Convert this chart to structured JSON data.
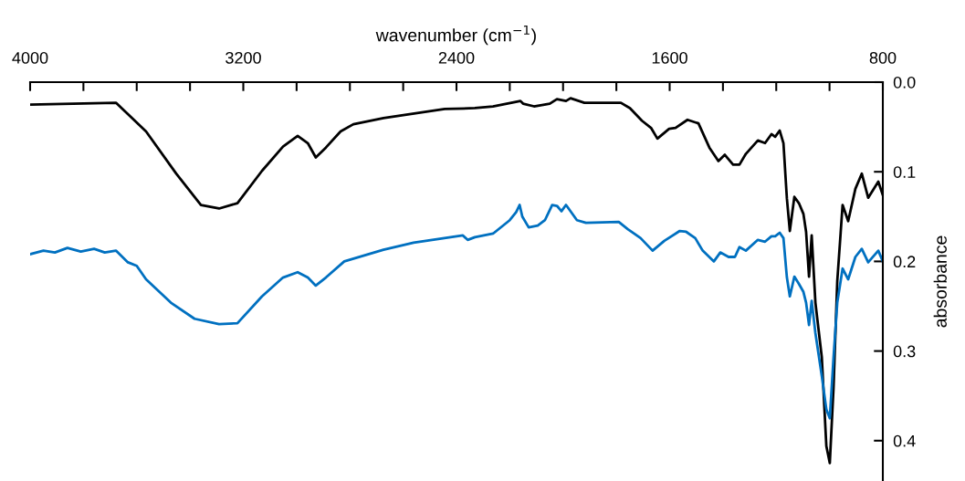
{
  "chart_data": {
    "type": "line",
    "xlabel": "wavenumber (cm$^{−1}$)",
    "ylabel": "absorbance",
    "xlim": [
      4000,
      800
    ],
    "ylim": [
      0.445,
      0
    ],
    "xticks": [
      4000,
      {
        "value": 3800,
        "label": null
      },
      {
        "value": 3600,
        "label": null
      },
      {
        "value": 3400,
        "label": null
      },
      3200,
      {
        "value": 3000,
        "label": null
      },
      {
        "value": 2800,
        "label": null
      },
      {
        "value": 2600,
        "label": null
      },
      2400,
      {
        "value": 2200,
        "label": null
      },
      {
        "value": 2000,
        "label": null
      },
      {
        "value": 1800,
        "label": null
      },
      1600,
      {
        "value": 1400,
        "label": null
      },
      {
        "value": 1200,
        "label": null
      },
      {
        "value": 1000,
        "label": null
      },
      800
    ],
    "yticks": [
      {
        "value": 0,
        "label": "0.0"
      },
      0.1,
      0.2,
      0.3,
      0.4
    ],
    "grid": false,
    "legend": false,
    "marker": "none",
    "line_style": "solid",
    "series": [
      {
        "color": "#000000",
        "x": [
          4000,
          3678,
          3565,
          3452,
          3359,
          3291,
          3222,
          3130,
          3051,
          2996,
          2958,
          2928,
          2890,
          2835,
          2787,
          2674,
          2444,
          2331,
          2263,
          2160,
          2150,
          2109,
          2050,
          2023,
          1989,
          1972,
          1920,
          1783,
          1749,
          1704,
          1670,
          1646,
          1602,
          1578,
          1533,
          1492,
          1451,
          1417,
          1393,
          1362,
          1338,
          1314,
          1269,
          1242,
          1218,
          1204,
          1187,
          1173,
          1160,
          1149,
          1132,
          1115,
          1098,
          1088,
          1077,
          1067,
          1053,
          1029,
          1012,
          999,
          985,
          971,
          951,
          930,
          903,
          879,
          855,
          817,
          800
        ],
        "values": [
          0.025,
          0.023,
          0.055,
          0.102,
          0.137,
          0.141,
          0.135,
          0.099,
          0.072,
          0.06,
          0.068,
          0.084,
          0.073,
          0.055,
          0.047,
          0.04,
          0.03,
          0.029,
          0.027,
          0.021,
          0.024,
          0.027,
          0.024,
          0.019,
          0.021,
          0.018,
          0.023,
          0.023,
          0.029,
          0.043,
          0.051,
          0.063,
          0.052,
          0.051,
          0.042,
          0.046,
          0.073,
          0.088,
          0.081,
          0.092,
          0.092,
          0.08,
          0.065,
          0.068,
          0.058,
          0.061,
          0.054,
          0.068,
          0.13,
          0.166,
          0.128,
          0.135,
          0.147,
          0.167,
          0.217,
          0.171,
          0.246,
          0.307,
          0.406,
          0.425,
          0.341,
          0.222,
          0.137,
          0.155,
          0.119,
          0.102,
          0.129,
          0.111,
          0.126
        ]
      },
      {
        "color": "#0070c0",
        "x": [
          4000,
          3950,
          3907,
          3860,
          3810,
          3760,
          3720,
          3678,
          3633,
          3600,
          3565,
          3472,
          3383,
          3291,
          3222,
          3130,
          3051,
          2996,
          2958,
          2928,
          2890,
          2821,
          2674,
          2561,
          2376,
          2358,
          2331,
          2263,
          2200,
          2176,
          2163,
          2153,
          2129,
          2095,
          2068,
          2041,
          2023,
          2006,
          1989,
          1948,
          1914,
          1791,
          1757,
          1709,
          1664,
          1620,
          1562,
          1538,
          1504,
          1476,
          1434,
          1410,
          1379,
          1355,
          1338,
          1314,
          1269,
          1242,
          1218,
          1204,
          1187,
          1173,
          1160,
          1149,
          1132,
          1115,
          1098,
          1088,
          1077,
          1067,
          1053,
          1029,
          1012,
          999,
          985,
          971,
          951,
          930,
          903,
          879,
          855,
          817,
          800
        ],
        "values": [
          0.192,
          0.188,
          0.19,
          0.185,
          0.189,
          0.186,
          0.19,
          0.188,
          0.201,
          0.205,
          0.22,
          0.246,
          0.264,
          0.27,
          0.269,
          0.239,
          0.218,
          0.212,
          0.218,
          0.227,
          0.218,
          0.2,
          0.187,
          0.179,
          0.171,
          0.176,
          0.173,
          0.169,
          0.154,
          0.145,
          0.137,
          0.15,
          0.162,
          0.16,
          0.154,
          0.137,
          0.138,
          0.144,
          0.137,
          0.154,
          0.157,
          0.156,
          0.164,
          0.174,
          0.188,
          0.177,
          0.166,
          0.167,
          0.174,
          0.188,
          0.2,
          0.19,
          0.195,
          0.195,
          0.184,
          0.188,
          0.176,
          0.178,
          0.172,
          0.172,
          0.168,
          0.174,
          0.218,
          0.239,
          0.217,
          0.225,
          0.234,
          0.246,
          0.271,
          0.244,
          0.28,
          0.328,
          0.365,
          0.375,
          0.307,
          0.246,
          0.208,
          0.22,
          0.195,
          0.186,
          0.201,
          0.188,
          0.2
        ]
      }
    ]
  }
}
